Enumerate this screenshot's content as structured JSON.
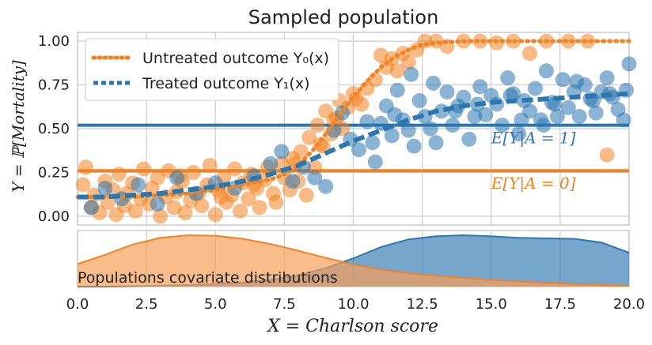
{
  "chart_data": [
    {
      "type": "scatter",
      "title": "Sampled population",
      "xlabel": "X = Charlson score",
      "ylabel": "Y = ℙ[Mortality]",
      "xlim": [
        0,
        20
      ],
      "ylim": [
        -0.05,
        1.05
      ],
      "x_ticks": [
        "0.0",
        "2.5",
        "5.0",
        "7.5",
        "10.0",
        "12.5",
        "15.0",
        "17.5",
        "20.0"
      ],
      "y_ticks": [
        "0.00",
        "0.25",
        "0.50",
        "0.75",
        "1.00"
      ],
      "grid": true,
      "legend_position": "top-left",
      "colors": {
        "untreated": "#f28322",
        "treated": "#2c77b0",
        "grid": "#cccccc"
      },
      "series": [
        {
          "name": "Untreated outcome Y₀(x)",
          "style": "dotted",
          "x": [
            0,
            1,
            2,
            3,
            4,
            5,
            6,
            7,
            7.5,
            8,
            8.5,
            9,
            9.5,
            10,
            10.5,
            11,
            11.5,
            12,
            12.5,
            13,
            14,
            15,
            16,
            17,
            18,
            19,
            20
          ],
          "y": [
            0.11,
            0.11,
            0.11,
            0.12,
            0.13,
            0.15,
            0.18,
            0.21,
            0.24,
            0.29,
            0.37,
            0.47,
            0.58,
            0.68,
            0.77,
            0.85,
            0.91,
            0.95,
            0.98,
            0.99,
            1.0,
            1.0,
            1.0,
            1.0,
            1.0,
            1.0,
            1.0
          ]
        },
        {
          "name": "Treated outcome Y₁(x)",
          "style": "dashed",
          "x": [
            0,
            1,
            2,
            3,
            4,
            5,
            6,
            7,
            8,
            9,
            10,
            11,
            12,
            13,
            14,
            15,
            16,
            17,
            18,
            19,
            20
          ],
          "y": [
            0.11,
            0.11,
            0.12,
            0.13,
            0.15,
            0.17,
            0.2,
            0.24,
            0.29,
            0.36,
            0.43,
            0.49,
            0.55,
            0.6,
            0.63,
            0.65,
            0.66,
            0.67,
            0.68,
            0.69,
            0.7
          ]
        }
      ],
      "reference_lines": [
        {
          "label": "E[Y|A = 1]",
          "y": 0.52,
          "color": "#2c77b0"
        },
        {
          "label": "E[Y|A = 0]",
          "y": 0.26,
          "color": "#f28322"
        }
      ],
      "scatter_untreated": {
        "x": [
          0.2,
          0.3,
          0.5,
          0.6,
          0.8,
          1.0,
          1.1,
          1.3,
          1.4,
          1.5,
          1.7,
          1.8,
          2.0,
          2.1,
          2.3,
          2.4,
          2.6,
          2.7,
          2.9,
          3.0,
          3.2,
          3.3,
          3.5,
          3.6,
          3.8,
          3.9,
          4.1,
          4.2,
          4.4,
          4.5,
          4.7,
          4.8,
          5.0,
          5.1,
          5.3,
          5.4,
          5.6,
          5.7,
          5.9,
          6.0,
          6.2,
          6.3,
          6.5,
          6.6,
          6.8,
          6.9,
          7.1,
          7.2,
          7.4,
          7.5,
          7.7,
          7.8,
          8.0,
          8.1,
          8.3,
          8.4,
          8.6,
          8.7,
          8.9,
          9.0,
          9.2,
          9.3,
          9.5,
          9.6,
          9.8,
          10.0,
          10.3,
          10.5,
          10.8,
          11.0,
          11.2,
          11.4,
          11.6,
          11.8,
          12.0,
          12.3,
          12.6,
          13.0,
          13.4,
          14.0,
          14.6,
          15.2,
          15.8,
          16.4,
          17.0,
          17.8,
          18.5,
          19.2,
          3.7,
          5.2,
          6.4,
          7.9,
          8.8,
          9.4,
          10.1
        ],
        "y": [
          0.18,
          0.28,
          0.05,
          0.12,
          0.02,
          0.2,
          0.08,
          0.15,
          0.01,
          0.24,
          0.06,
          0.13,
          0.19,
          0.03,
          0.1,
          0.27,
          0.07,
          0.16,
          0.22,
          0.0,
          0.11,
          0.26,
          0.05,
          0.14,
          0.2,
          0.02,
          0.09,
          0.25,
          0.13,
          0.06,
          0.18,
          0.29,
          0.01,
          0.15,
          0.22,
          0.08,
          0.12,
          0.27,
          0.03,
          0.19,
          0.1,
          0.24,
          0.16,
          0.05,
          0.21,
          0.28,
          0.13,
          0.08,
          0.3,
          0.22,
          0.15,
          0.33,
          0.2,
          0.37,
          0.12,
          0.45,
          0.28,
          0.52,
          0.4,
          0.6,
          0.47,
          0.55,
          0.66,
          0.5,
          0.62,
          0.7,
          0.64,
          0.73,
          0.78,
          0.92,
          0.85,
          0.9,
          0.83,
          0.93,
          0.88,
          0.95,
          1.0,
          1.0,
          0.97,
          1.0,
          1.0,
          0.99,
          1.0,
          0.93,
          1.0,
          1.0,
          1.0,
          0.35,
          0.23,
          0.11,
          0.18,
          0.3,
          0.41,
          0.56,
          0.67
        ]
      },
      "scatter_treated": {
        "x": [
          0.5,
          1.0,
          1.6,
          2.2,
          2.9,
          3.6,
          4.3,
          5.0,
          5.7,
          6.4,
          7.0,
          7.4,
          7.8,
          8.2,
          8.6,
          9.0,
          9.3,
          9.6,
          9.9,
          10.2,
          10.5,
          10.8,
          11.0,
          11.2,
          11.4,
          11.6,
          11.8,
          12.0,
          12.2,
          12.4,
          12.6,
          12.8,
          13.0,
          13.2,
          13.4,
          13.6,
          13.8,
          14.0,
          14.2,
          14.4,
          14.6,
          14.8,
          15.0,
          15.2,
          15.4,
          15.6,
          15.8,
          16.0,
          16.2,
          16.4,
          16.6,
          16.8,
          17.0,
          17.2,
          17.4,
          17.6,
          17.8,
          18.0,
          18.2,
          18.4,
          18.6,
          18.8,
          19.0,
          19.2,
          19.4,
          19.6,
          19.8,
          20.0,
          10.7,
          12.9,
          14.5,
          15.7,
          16.9,
          18.1,
          19.3,
          11.5,
          13.7,
          17.3,
          19.9,
          12.1,
          16.1,
          18.7
        ],
        "y": [
          0.05,
          0.16,
          0.1,
          0.18,
          0.07,
          0.22,
          0.13,
          0.19,
          0.16,
          0.23,
          0.3,
          0.37,
          0.2,
          0.28,
          0.22,
          0.17,
          0.49,
          0.59,
          0.44,
          0.38,
          0.54,
          0.31,
          0.53,
          0.63,
          0.46,
          0.72,
          0.55,
          0.49,
          0.4,
          0.66,
          0.57,
          0.5,
          0.42,
          0.6,
          0.71,
          0.52,
          0.63,
          0.68,
          0.44,
          0.57,
          0.74,
          0.58,
          0.69,
          0.64,
          0.52,
          0.79,
          0.7,
          0.47,
          0.66,
          0.6,
          0.73,
          0.55,
          0.83,
          0.65,
          0.57,
          0.78,
          0.62,
          0.71,
          0.57,
          0.75,
          0.67,
          0.59,
          0.71,
          0.79,
          0.68,
          0.61,
          0.55,
          0.87,
          0.42,
          0.76,
          0.64,
          0.69,
          0.52,
          0.77,
          0.7,
          0.58,
          0.6,
          0.64,
          0.72,
          0.81,
          0.55,
          0.66
        ]
      }
    },
    {
      "type": "area",
      "annotation": "Populations covariate distributions",
      "xlim": [
        0,
        20
      ],
      "series": [
        {
          "name": "untreated",
          "x": [
            0,
            1,
            2,
            3,
            4,
            5,
            6,
            7,
            8,
            9,
            10,
            11,
            12,
            13,
            14,
            15,
            16,
            17,
            18,
            19,
            20
          ],
          "density": [
            0.44,
            0.62,
            0.82,
            0.95,
            1.0,
            0.99,
            0.93,
            0.83,
            0.7,
            0.56,
            0.43,
            0.33,
            0.26,
            0.21,
            0.17,
            0.13,
            0.1,
            0.07,
            0.05,
            0.03,
            0.02
          ]
        },
        {
          "name": "treated",
          "x": [
            0,
            1,
            2,
            3,
            4,
            5,
            6,
            7,
            8,
            9,
            10,
            11,
            12,
            13,
            14,
            15,
            16,
            17,
            18,
            19,
            20
          ],
          "density": [
            0.0,
            0.0,
            0.01,
            0.02,
            0.03,
            0.05,
            0.08,
            0.13,
            0.22,
            0.36,
            0.55,
            0.77,
            0.92,
            0.98,
            1.0,
            0.98,
            0.95,
            0.94,
            0.93,
            0.86,
            0.66
          ]
        }
      ]
    }
  ]
}
